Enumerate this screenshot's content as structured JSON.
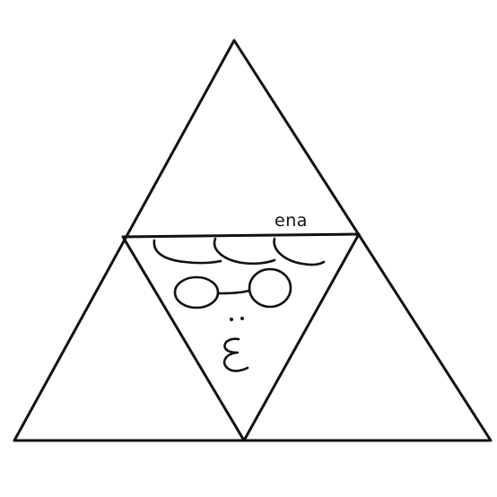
{
  "drawing": {
    "signature": "ena",
    "colors": {
      "ink": "#111111",
      "background": "#ffffff"
    }
  }
}
